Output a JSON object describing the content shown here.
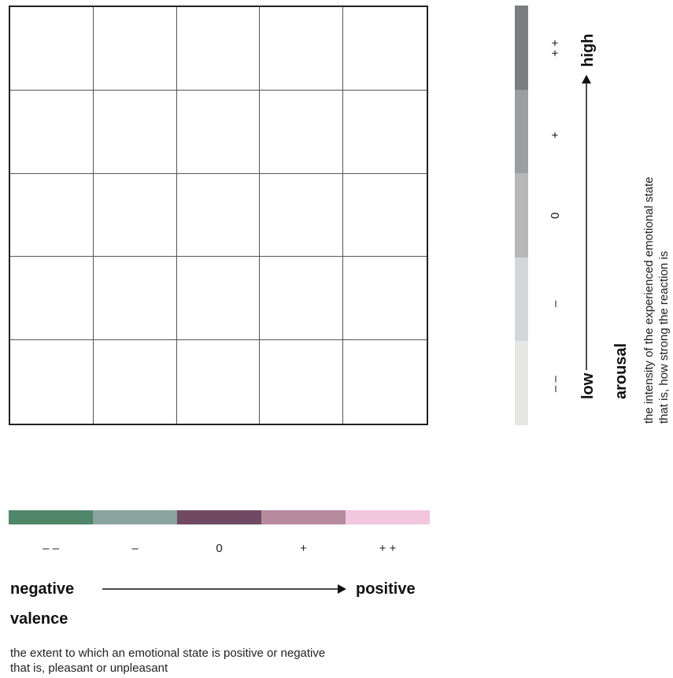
{
  "valence": {
    "title": "valence",
    "low": "negative",
    "high": "positive",
    "description_line1": "the extent to which an emotional state is positive or negative",
    "description_line2": "that is, pleasant or unpleasant",
    "scale": [
      {
        "label": "– –",
        "color": "#4f8768"
      },
      {
        "label": "–",
        "color": "#8ba39e"
      },
      {
        "label": "0",
        "color": "#6f4a62"
      },
      {
        "label": "+",
        "color": "#b78a9e"
      },
      {
        "label": "+ +",
        "color": "#f2c6dc"
      }
    ]
  },
  "arousal": {
    "title": "arousal",
    "low": "low",
    "high": "high",
    "description_line1": "the intensity of the experienced emotional state",
    "description_line2": "that is, how strong the reaction is",
    "scale_top_to_bottom": [
      {
        "label": "+ +",
        "color": "#7b7e80"
      },
      {
        "label": "+",
        "color": "#9b9ea0"
      },
      {
        "label": "0",
        "color": "#b8b8b8"
      },
      {
        "label": "–",
        "color": "#d4d6da"
      },
      {
        "label": "– –",
        "color": "#e6e6e4"
      }
    ]
  }
}
